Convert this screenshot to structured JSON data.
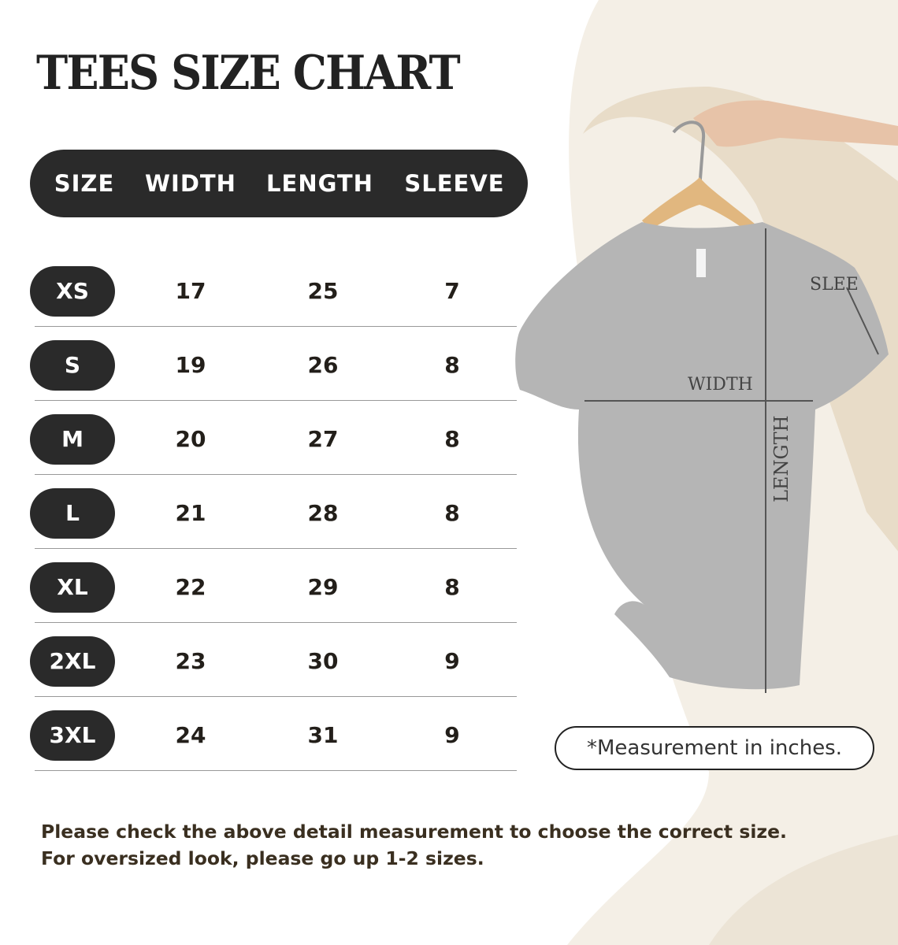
{
  "title": "TEES SIZE CHART",
  "header": [
    "SIZE",
    "WIDTH",
    "LENGTH",
    "SLEEVE"
  ],
  "rows": [
    {
      "size": "XS",
      "width": "17",
      "length": "25",
      "sleeve": "7"
    },
    {
      "size": "S",
      "width": "19",
      "length": "26",
      "sleeve": "8"
    },
    {
      "size": "M",
      "width": "20",
      "length": "27",
      "sleeve": "8"
    },
    {
      "size": "L",
      "width": "21",
      "length": "28",
      "sleeve": "8"
    },
    {
      "size": "XL",
      "width": "22",
      "length": "29",
      "sleeve": "8"
    },
    {
      "size": "2XL",
      "width": "23",
      "length": "30",
      "sleeve": "9"
    },
    {
      "size": "3XL",
      "width": "24",
      "length": "31",
      "sleeve": "9"
    }
  ],
  "diagram": {
    "width_label": "WIDTH",
    "length_label": "LENGTH",
    "sleeve_label": "SLEE"
  },
  "note": "*Measurement in inches.",
  "footer": [
    "Please check the above detail measurement to choose the correct size.",
    "For oversized look, please go up 1-2 sizes."
  ],
  "colors": {
    "pill": "#2a2a2a",
    "text": "#231f1a",
    "footer": "#3a2f20",
    "shirt": "#b5b5b5",
    "background_brush": "#ece4d6"
  }
}
